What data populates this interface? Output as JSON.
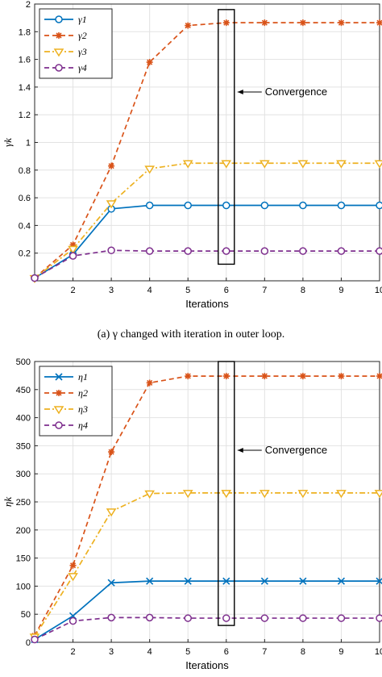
{
  "caption_a": "(a) γ changed with iteration in outer loop.",
  "chart_data": [
    {
      "type": "line",
      "xlabel": "Iterations",
      "ylabel": "γk",
      "xlim": [
        1,
        10
      ],
      "ylim": [
        0,
        2
      ],
      "xticks": [
        "2",
        "3",
        "4",
        "5",
        "6",
        "7",
        "8",
        "9",
        "10"
      ],
      "yticks": [
        "0.2",
        "0.4",
        "0.6",
        "0.8",
        "1",
        "1.2",
        "1.4",
        "1.6",
        "1.8",
        "2"
      ],
      "grid": true,
      "legend_position": "top-left",
      "x": [
        1,
        2,
        3,
        4,
        5,
        6,
        7,
        8,
        9,
        10
      ],
      "series": [
        {
          "name": "γ1",
          "color": "#0072BD",
          "style": "solid",
          "marker": "circle",
          "values": [
            0.02,
            0.19,
            0.52,
            0.545,
            0.545,
            0.545,
            0.545,
            0.545,
            0.545,
            0.545
          ]
        },
        {
          "name": "γ2",
          "color": "#D95319",
          "style": "dashed",
          "marker": "asterisk",
          "values": [
            0.02,
            0.26,
            0.83,
            1.58,
            1.845,
            1.865,
            1.865,
            1.865,
            1.865,
            1.865
          ]
        },
        {
          "name": "γ3",
          "color": "#EDB120",
          "style": "dashdot",
          "marker": "triangle-down",
          "values": [
            0.02,
            0.23,
            0.56,
            0.81,
            0.85,
            0.85,
            0.85,
            0.85,
            0.85,
            0.85
          ]
        },
        {
          "name": "γ4",
          "color": "#7E2F8E",
          "style": "dashed",
          "marker": "circle",
          "values": [
            0.02,
            0.18,
            0.22,
            0.215,
            0.215,
            0.215,
            0.215,
            0.215,
            0.215,
            0.215
          ]
        }
      ],
      "annotation": {
        "text": "Convergence",
        "x": 6,
        "box_ylim": [
          0.12,
          1.96
        ]
      }
    },
    {
      "type": "line",
      "xlabel": "Iterations",
      "ylabel": "ηk",
      "xlim": [
        1,
        10
      ],
      "ylim": [
        0,
        500
      ],
      "xticks": [
        "2",
        "3",
        "4",
        "5",
        "6",
        "7",
        "8",
        "9",
        "10"
      ],
      "yticks": [
        "0",
        "50",
        "100",
        "150",
        "200",
        "250",
        "300",
        "350",
        "400",
        "450",
        "500"
      ],
      "grid": true,
      "legend_position": "top-left",
      "x": [
        1,
        2,
        3,
        4,
        5,
        6,
        7,
        8,
        9,
        10
      ],
      "series": [
        {
          "name": "η1",
          "color": "#0072BD",
          "style": "solid",
          "marker": "x",
          "values": [
            5,
            47,
            106,
            109,
            109,
            109,
            109,
            109,
            109,
            109
          ]
        },
        {
          "name": "η2",
          "color": "#D95319",
          "style": "dashed",
          "marker": "asterisk",
          "values": [
            12,
            137,
            339,
            462,
            474,
            474,
            474,
            474,
            474,
            474
          ]
        },
        {
          "name": "η3",
          "color": "#EDB120",
          "style": "dashdot",
          "marker": "triangle-down",
          "values": [
            10,
            118,
            233,
            265,
            266,
            266,
            266,
            266,
            266,
            266
          ]
        },
        {
          "name": "η4",
          "color": "#7E2F8E",
          "style": "dashed",
          "marker": "circle",
          "values": [
            5,
            38,
            44,
            44,
            43,
            43,
            43,
            43,
            43,
            43
          ]
        }
      ],
      "annotation": {
        "text": "Convergence",
        "x": 6,
        "box_ylim": [
          30,
          500
        ]
      }
    }
  ]
}
